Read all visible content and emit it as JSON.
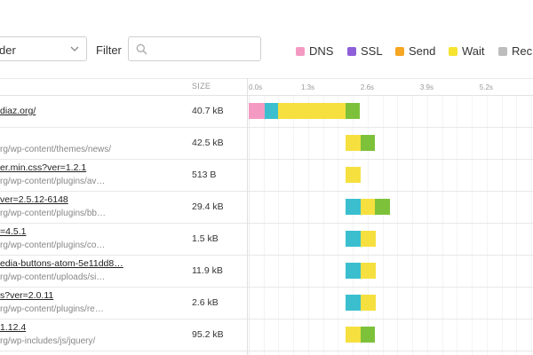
{
  "toolbar": {
    "sort_value": "der",
    "filter_label": "Filter",
    "filter_placeholder": "",
    "legend": [
      {
        "label": "DNS",
        "color": "#f49ac2"
      },
      {
        "label": "SSL",
        "color": "#8e5fd8"
      },
      {
        "label": "Send",
        "color": "#f5a623"
      },
      {
        "label": "Wait",
        "color": "#f6e430"
      },
      {
        "label": "Rec",
        "color": "#bdbdbd"
      }
    ]
  },
  "header": {
    "size_label": "SIZE",
    "ticks": [
      "0.0s",
      "1.3s",
      "2.6s",
      "3.9s",
      "5.2s"
    ]
  },
  "colors": {
    "dns": "#f49ac2",
    "connect": "#3bbfcf",
    "wait": "#f6e040",
    "receive": "#7dc13a"
  },
  "requests": [
    {
      "name": "diaz.org/",
      "path": "",
      "size": "40.7 kB",
      "segments": [
        {
          "type": "dns",
          "start": 0.0,
          "end": 0.35
        },
        {
          "type": "connect",
          "start": 0.35,
          "end": 0.65
        },
        {
          "type": "wait",
          "start": 0.65,
          "end": 2.12
        },
        {
          "type": "receive",
          "start": 2.12,
          "end": 2.42
        }
      ]
    },
    {
      "name": "",
      "path": "rg/wp-content/themes/news/",
      "size": "42.5 kB",
      "segments": [
        {
          "type": "wait",
          "start": 2.12,
          "end": 2.45
        },
        {
          "type": "receive",
          "start": 2.45,
          "end": 2.75
        }
      ]
    },
    {
      "name": "er.min.css?ver=1.2.1",
      "path": "rg/wp-content/plugins/av…",
      "size": "513 B",
      "segments": [
        {
          "type": "wait",
          "start": 2.12,
          "end": 2.45
        }
      ]
    },
    {
      "name": "ver=2.5.12-6148",
      "path": "rg/wp-content/plugins/bb…",
      "size": "29.4 kB",
      "segments": [
        {
          "type": "connect",
          "start": 2.12,
          "end": 2.45
        },
        {
          "type": "wait",
          "start": 2.45,
          "end": 2.75
        },
        {
          "type": "receive",
          "start": 2.75,
          "end": 3.08
        }
      ]
    },
    {
      "name": "=4.5.1",
      "path": "rg/wp-content/plugins/co…",
      "size": "1.5 kB",
      "segments": [
        {
          "type": "connect",
          "start": 2.12,
          "end": 2.45
        },
        {
          "type": "wait",
          "start": 2.45,
          "end": 2.78
        }
      ]
    },
    {
      "name": "edia-buttons-atom-5e11dd8…",
      "path": "rg/wp-content/uploads/si…",
      "size": "11.9 kB",
      "segments": [
        {
          "type": "connect",
          "start": 2.12,
          "end": 2.45
        },
        {
          "type": "wait",
          "start": 2.45,
          "end": 2.78
        }
      ]
    },
    {
      "name": "s?ver=2.0.11",
      "path": "rg/wp-content/plugins/re…",
      "size": "2.6 kB",
      "segments": [
        {
          "type": "connect",
          "start": 2.12,
          "end": 2.45
        },
        {
          "type": "wait",
          "start": 2.45,
          "end": 2.78
        }
      ]
    },
    {
      "name": "1.12.4",
      "path": "rg/wp-includes/js/jquery/",
      "size": "95.2 kB",
      "segments": [
        {
          "type": "wait",
          "start": 2.12,
          "end": 2.45
        },
        {
          "type": "receive",
          "start": 2.45,
          "end": 2.75
        }
      ]
    }
  ]
}
